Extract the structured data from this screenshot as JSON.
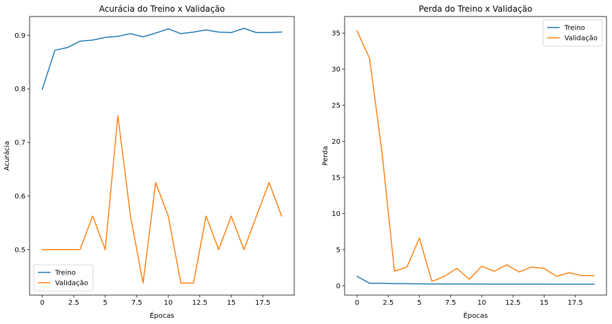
{
  "chart_data": [
    {
      "type": "line",
      "title": "Acurácia do Treino x Validação",
      "xlabel": "Épocas",
      "ylabel": "Acurácia",
      "xlim": [
        -1,
        20
      ],
      "ylim": [
        0.415,
        0.935
      ],
      "xticks": [
        0,
        2.5,
        5,
        7.5,
        10,
        12.5,
        15,
        17.5
      ],
      "yticks": [
        0.5,
        0.6,
        0.7,
        0.8,
        0.9
      ],
      "legend": "lower-left",
      "grid": false,
      "x": [
        0,
        1,
        2,
        3,
        4,
        5,
        6,
        7,
        8,
        9,
        10,
        11,
        12,
        13,
        14,
        15,
        16,
        17,
        18,
        19
      ],
      "series": [
        {
          "name": "Treino",
          "color": "#1f77b4",
          "values": [
            0.799,
            0.872,
            0.877,
            0.889,
            0.891,
            0.896,
            0.898,
            0.903,
            0.897,
            0.904,
            0.912,
            0.903,
            0.906,
            0.91,
            0.906,
            0.905,
            0.913,
            0.905,
            0.905,
            0.906
          ]
        },
        {
          "name": "Validação",
          "color": "#ff7f0e",
          "values": [
            0.5,
            0.5,
            0.5,
            0.5,
            0.5625,
            0.5,
            0.75,
            0.5625,
            0.4375,
            0.625,
            0.5625,
            0.4375,
            0.4375,
            0.5625,
            0.5,
            0.5625,
            0.5,
            0.5625,
            0.625,
            0.5625
          ]
        }
      ]
    },
    {
      "type": "line",
      "title": "Perda do Treino x Validação",
      "xlabel": "Épocas",
      "ylabel": "Perda",
      "xlim": [
        -1,
        20
      ],
      "ylim": [
        -1.3,
        37.3
      ],
      "xticks": [
        0,
        2.5,
        5,
        7.5,
        10,
        12.5,
        15,
        17.5
      ],
      "yticks": [
        0,
        5,
        10,
        15,
        20,
        25,
        30,
        35
      ],
      "legend": "upper-right",
      "grid": false,
      "x": [
        0,
        1,
        2,
        3,
        4,
        5,
        6,
        7,
        8,
        9,
        10,
        11,
        12,
        13,
        14,
        15,
        16,
        17,
        18,
        19
      ],
      "series": [
        {
          "name": "Treino",
          "color": "#1f77b4",
          "values": [
            1.3,
            0.35,
            0.35,
            0.28,
            0.28,
            0.26,
            0.25,
            0.24,
            0.24,
            0.24,
            0.23,
            0.23,
            0.23,
            0.22,
            0.22,
            0.22,
            0.21,
            0.21,
            0.21,
            0.21
          ]
        },
        {
          "name": "Validação",
          "color": "#ff7f0e",
          "values": [
            35.3,
            31.5,
            18.5,
            2.0,
            2.6,
            6.6,
            0.6,
            1.3,
            2.4,
            0.9,
            2.7,
            2.0,
            2.9,
            1.9,
            2.6,
            2.4,
            1.3,
            1.8,
            1.4,
            1.4
          ]
        }
      ]
    }
  ]
}
